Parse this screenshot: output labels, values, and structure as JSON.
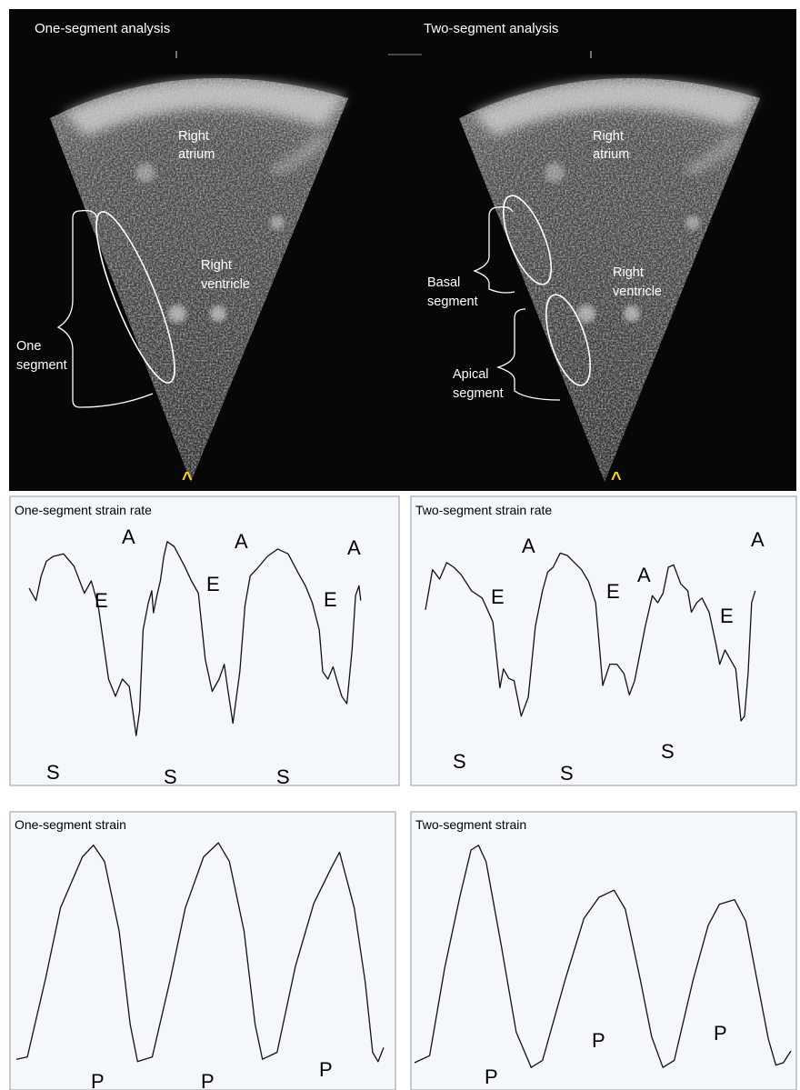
{
  "echo": {
    "left": {
      "title": "One-segment analysis",
      "labels": {
        "atrium": [
          "Right",
          "atrium"
        ],
        "ventricle": [
          "Right",
          "ventricle"
        ],
        "segment": [
          "One",
          "segment"
        ]
      }
    },
    "right": {
      "title": "Two-segment analysis",
      "labels": {
        "atrium": [
          "Right",
          "atrium"
        ],
        "ventricle": [
          "Right",
          "ventricle"
        ],
        "basal": [
          "Basal",
          "segment"
        ],
        "apical": [
          "Apical",
          "segment"
        ]
      }
    },
    "apex_marker": "^",
    "colors": {
      "background": "#070707",
      "sector": "#4a4a4a",
      "bright_wall": "#d8d8d8",
      "annotation": "#ffffff",
      "marker": "#f2d31a"
    }
  },
  "panels": [
    {
      "id": "one-seg-sr",
      "title": "One-segment strain rate",
      "peak_labels": [
        "E",
        "A",
        "S",
        "E",
        "A",
        "S",
        "E",
        "A",
        "S"
      ],
      "trace": [
        [
          0,
          0.77
        ],
        [
          0.02,
          0.72
        ],
        [
          0.035,
          0.82
        ],
        [
          0.05,
          0.88
        ],
        [
          0.07,
          0.9
        ],
        [
          0.1,
          0.91
        ],
        [
          0.13,
          0.86
        ],
        [
          0.16,
          0.75
        ],
        [
          0.18,
          0.8
        ],
        [
          0.2,
          0.7
        ],
        [
          0.23,
          0.4
        ],
        [
          0.25,
          0.33
        ],
        [
          0.27,
          0.4
        ],
        [
          0.29,
          0.37
        ],
        [
          0.31,
          0.17
        ],
        [
          0.32,
          0.27
        ],
        [
          0.33,
          0.6
        ],
        [
          0.345,
          0.71
        ],
        [
          0.355,
          0.76
        ],
        [
          0.36,
          0.67
        ],
        [
          0.37,
          0.74
        ],
        [
          0.38,
          0.8
        ],
        [
          0.39,
          0.9
        ],
        [
          0.4,
          0.96
        ],
        [
          0.42,
          0.94
        ],
        [
          0.45,
          0.86
        ],
        [
          0.47,
          0.8
        ],
        [
          0.49,
          0.75
        ],
        [
          0.51,
          0.48
        ],
        [
          0.53,
          0.35
        ],
        [
          0.55,
          0.4
        ],
        [
          0.565,
          0.46
        ],
        [
          0.575,
          0.36
        ],
        [
          0.59,
          0.22
        ],
        [
          0.61,
          0.43
        ],
        [
          0.625,
          0.7
        ],
        [
          0.64,
          0.82
        ],
        [
          0.66,
          0.85
        ],
        [
          0.69,
          0.9
        ],
        [
          0.72,
          0.93
        ],
        [
          0.75,
          0.91
        ],
        [
          0.78,
          0.83
        ],
        [
          0.8,
          0.78
        ],
        [
          0.82,
          0.71
        ],
        [
          0.84,
          0.6
        ],
        [
          0.85,
          0.43
        ],
        [
          0.865,
          0.4
        ],
        [
          0.88,
          0.45
        ],
        [
          0.89,
          0.4
        ],
        [
          0.905,
          0.33
        ],
        [
          0.92,
          0.3
        ],
        [
          0.935,
          0.52
        ],
        [
          0.945,
          0.74
        ],
        [
          0.955,
          0.78
        ],
        [
          0.96,
          0.72
        ]
      ]
    },
    {
      "id": "two-seg-sr",
      "title": "Two-segment strain rate",
      "peak_labels": [
        "E",
        "A",
        "S",
        "E",
        "A",
        "S",
        "E",
        "A",
        "S"
      ],
      "trace": [
        [
          0,
          0.67
        ],
        [
          0.02,
          0.84
        ],
        [
          0.04,
          0.8
        ],
        [
          0.06,
          0.87
        ],
        [
          0.08,
          0.85
        ],
        [
          0.1,
          0.82
        ],
        [
          0.13,
          0.75
        ],
        [
          0.16,
          0.72
        ],
        [
          0.19,
          0.62
        ],
        [
          0.21,
          0.34
        ],
        [
          0.22,
          0.42
        ],
        [
          0.235,
          0.38
        ],
        [
          0.25,
          0.37
        ],
        [
          0.27,
          0.22
        ],
        [
          0.29,
          0.3
        ],
        [
          0.31,
          0.6
        ],
        [
          0.33,
          0.75
        ],
        [
          0.345,
          0.83
        ],
        [
          0.36,
          0.85
        ],
        [
          0.38,
          0.91
        ],
        [
          0.4,
          0.9
        ],
        [
          0.42,
          0.87
        ],
        [
          0.44,
          0.84
        ],
        [
          0.46,
          0.79
        ],
        [
          0.48,
          0.7
        ],
        [
          0.5,
          0.35
        ],
        [
          0.52,
          0.44
        ],
        [
          0.54,
          0.44
        ],
        [
          0.56,
          0.4
        ],
        [
          0.575,
          0.31
        ],
        [
          0.59,
          0.37
        ],
        [
          0.62,
          0.6
        ],
        [
          0.64,
          0.73
        ],
        [
          0.655,
          0.7
        ],
        [
          0.67,
          0.74
        ],
        [
          0.685,
          0.85
        ],
        [
          0.7,
          0.86
        ],
        [
          0.72,
          0.78
        ],
        [
          0.74,
          0.75
        ],
        [
          0.75,
          0.66
        ],
        [
          0.765,
          0.7
        ],
        [
          0.78,
          0.72
        ],
        [
          0.8,
          0.66
        ],
        [
          0.82,
          0.52
        ],
        [
          0.83,
          0.44
        ],
        [
          0.845,
          0.5
        ],
        [
          0.86,
          0.46
        ],
        [
          0.875,
          0.42
        ],
        [
          0.89,
          0.2
        ],
        [
          0.9,
          0.22
        ],
        [
          0.91,
          0.4
        ],
        [
          0.92,
          0.7
        ],
        [
          0.93,
          0.75
        ]
      ]
    },
    {
      "id": "one-seg-strain",
      "title": "One-segment strain",
      "peak_labels": [
        "P",
        "P",
        "P"
      ],
      "trace": [
        [
          0,
          0.05
        ],
        [
          0.03,
          0.06
        ],
        [
          0.08,
          0.4
        ],
        [
          0.12,
          0.7
        ],
        [
          0.18,
          0.92
        ],
        [
          0.21,
          0.97
        ],
        [
          0.24,
          0.9
        ],
        [
          0.28,
          0.6
        ],
        [
          0.31,
          0.2
        ],
        [
          0.33,
          0.04
        ],
        [
          0.37,
          0.06
        ],
        [
          0.42,
          0.4
        ],
        [
          0.46,
          0.7
        ],
        [
          0.51,
          0.92
        ],
        [
          0.55,
          0.98
        ],
        [
          0.58,
          0.9
        ],
        [
          0.62,
          0.6
        ],
        [
          0.65,
          0.2
        ],
        [
          0.67,
          0.05
        ],
        [
          0.71,
          0.08
        ],
        [
          0.76,
          0.45
        ],
        [
          0.81,
          0.72
        ],
        [
          0.86,
          0.88
        ],
        [
          0.88,
          0.94
        ],
        [
          0.92,
          0.7
        ],
        [
          0.95,
          0.38
        ],
        [
          0.97,
          0.08
        ],
        [
          0.985,
          0.04
        ],
        [
          1.0,
          0.1
        ]
      ]
    },
    {
      "id": "two-seg-strain",
      "title": "Two-segment strain",
      "peak_labels": [
        "P",
        "P",
        "P"
      ],
      "trace": [
        [
          0,
          0.05
        ],
        [
          0.04,
          0.08
        ],
        [
          0.08,
          0.45
        ],
        [
          0.12,
          0.75
        ],
        [
          0.15,
          0.95
        ],
        [
          0.17,
          0.97
        ],
        [
          0.19,
          0.9
        ],
        [
          0.23,
          0.55
        ],
        [
          0.27,
          0.18
        ],
        [
          0.31,
          0.03
        ],
        [
          0.34,
          0.06
        ],
        [
          0.4,
          0.4
        ],
        [
          0.45,
          0.66
        ],
        [
          0.49,
          0.75
        ],
        [
          0.53,
          0.78
        ],
        [
          0.56,
          0.7
        ],
        [
          0.6,
          0.4
        ],
        [
          0.63,
          0.16
        ],
        [
          0.66,
          0.03
        ],
        [
          0.69,
          0.06
        ],
        [
          0.74,
          0.4
        ],
        [
          0.78,
          0.63
        ],
        [
          0.81,
          0.72
        ],
        [
          0.85,
          0.74
        ],
        [
          0.88,
          0.65
        ],
        [
          0.91,
          0.4
        ],
        [
          0.94,
          0.15
        ],
        [
          0.96,
          0.04
        ],
        [
          0.98,
          0.05
        ],
        [
          1.0,
          0.1
        ]
      ]
    }
  ]
}
